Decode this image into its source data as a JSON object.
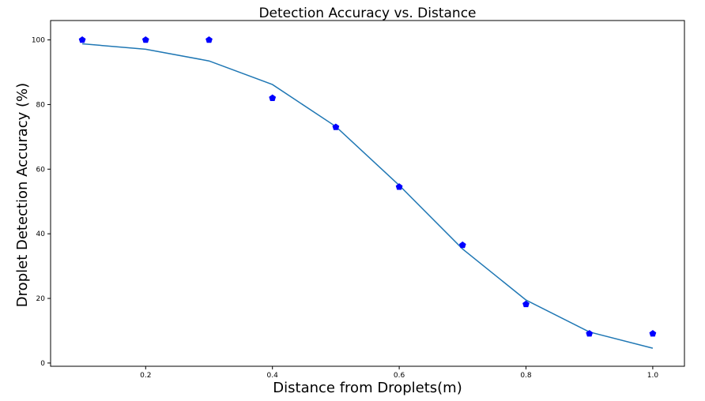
{
  "chart_data": {
    "type": "scatter",
    "title": "Detection Accuracy vs. Distance",
    "xlabel": "Distance from Droplets(m)",
    "ylabel": "Droplet Detection Accuracy (%)",
    "xlim": [
      0.05,
      1.05
    ],
    "ylim": [
      -1,
      106
    ],
    "xticks": [
      0.2,
      0.4,
      0.6,
      0.8,
      1.0
    ],
    "xtick_labels": [
      "0.2",
      "0.4",
      "0.6",
      "0.8",
      "1.0"
    ],
    "yticks": [
      0,
      20,
      40,
      60,
      80,
      100
    ],
    "ytick_labels": [
      "0",
      "20",
      "40",
      "60",
      "80",
      "100"
    ],
    "grid": false,
    "series": [
      {
        "kind": "points",
        "marker": "pentagon",
        "color": "#0000ff",
        "x": [
          0.1,
          0.2,
          0.3,
          0.4,
          0.5,
          0.6,
          0.7,
          0.8,
          0.9,
          1.0
        ],
        "y": [
          100,
          100,
          100,
          82,
          73,
          54.5,
          36.5,
          18.2,
          9.1,
          9.1
        ]
      },
      {
        "kind": "line",
        "color": "#1f77b4",
        "x": [
          0.1,
          0.2,
          0.3,
          0.4,
          0.5,
          0.6,
          0.7,
          0.8,
          0.9,
          1.0
        ],
        "y": [
          98.8,
          97.1,
          93.5,
          86.2,
          73.2,
          55.0,
          35.3,
          19.5,
          9.6,
          4.6
        ]
      }
    ]
  }
}
